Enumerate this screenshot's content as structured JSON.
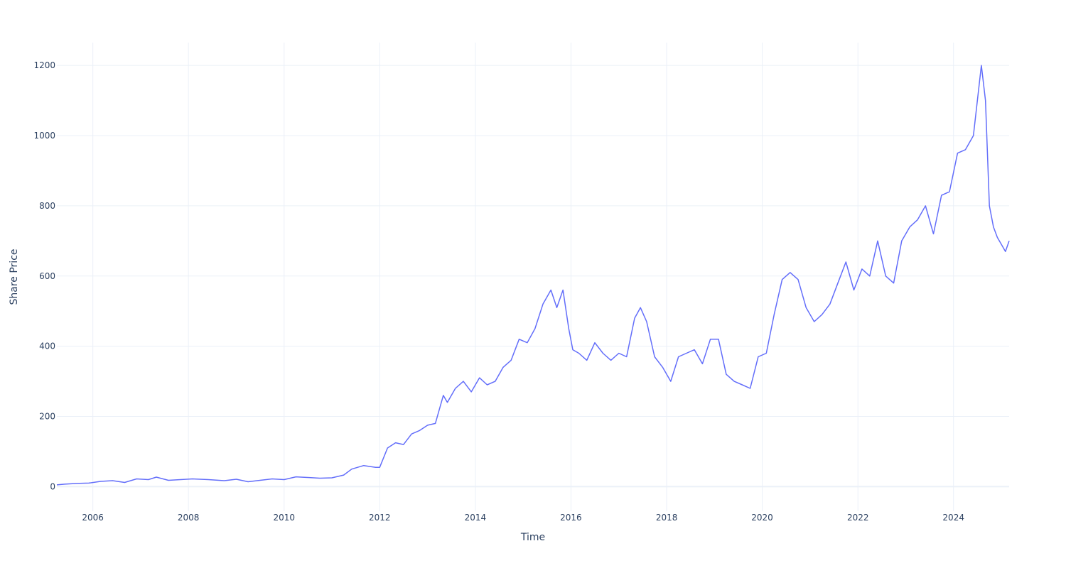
{
  "chart_data": {
    "type": "line",
    "title": "",
    "xlabel": "Time",
    "ylabel": "Share Price",
    "xlim": [
      "2005-04-01",
      "2025-03-01"
    ],
    "ylim": [
      -70,
      1265
    ],
    "x_ticks": [
      "2006",
      "2008",
      "2010",
      "2012",
      "2014",
      "2016",
      "2018",
      "2020",
      "2022",
      "2024"
    ],
    "y_ticks": [
      0,
      200,
      400,
      600,
      800,
      1000,
      1200
    ],
    "grid": true,
    "legend": "none",
    "series": [
      {
        "color": "#636efa",
        "x": [
          "2005-04-01",
          "2005-06-01",
          "2005-09-01",
          "2005-12-01",
          "2006-03-01",
          "2006-06-01",
          "2006-09-01",
          "2006-12-01",
          "2007-03-01",
          "2007-05-01",
          "2007-08-01",
          "2007-11-01",
          "2008-02-01",
          "2008-06-01",
          "2008-10-01",
          "2009-01-01",
          "2009-04-01",
          "2009-07-01",
          "2009-10-01",
          "2010-01-01",
          "2010-04-01",
          "2010-07-01",
          "2010-10-01",
          "2011-01-01",
          "2011-04-01",
          "2011-06-01",
          "2011-09-01",
          "2011-12-01",
          "2012-01-01",
          "2012-03-01",
          "2012-05-01",
          "2012-07-01",
          "2012-09-01",
          "2012-11-01",
          "2013-01-01",
          "2013-03-01",
          "2013-05-01",
          "2013-06-01",
          "2013-08-01",
          "2013-10-01",
          "2013-12-01",
          "2014-02-01",
          "2014-04-01",
          "2014-06-01",
          "2014-08-01",
          "2014-10-01",
          "2014-12-01",
          "2015-02-01",
          "2015-04-01",
          "2015-06-01",
          "2015-08-01",
          "2015-09-15",
          "2015-11-01",
          "2015-12-15",
          "2016-01-15",
          "2016-03-01",
          "2016-05-01",
          "2016-07-01",
          "2016-09-01",
          "2016-11-01",
          "2017-01-01",
          "2017-03-01",
          "2017-05-01",
          "2017-06-15",
          "2017-08-01",
          "2017-10-01",
          "2017-12-01",
          "2018-02-01",
          "2018-04-01",
          "2018-06-01",
          "2018-08-01",
          "2018-10-01",
          "2018-12-01",
          "2019-02-01",
          "2019-04-01",
          "2019-06-01",
          "2019-08-01",
          "2019-10-01",
          "2019-12-01",
          "2020-02-01",
          "2020-04-01",
          "2020-06-01",
          "2020-08-01",
          "2020-10-01",
          "2020-12-01",
          "2021-02-01",
          "2021-04-01",
          "2021-06-01",
          "2021-08-01",
          "2021-10-01",
          "2021-12-01",
          "2022-02-01",
          "2022-04-01",
          "2022-06-01",
          "2022-08-01",
          "2022-10-01",
          "2022-12-01",
          "2023-02-01",
          "2023-04-01",
          "2023-06-01",
          "2023-08-01",
          "2023-10-01",
          "2023-12-01",
          "2024-02-01",
          "2024-04-01",
          "2024-06-01",
          "2024-08-01",
          "2024-09-01",
          "2024-10-01",
          "2024-11-01",
          "2024-12-01",
          "2025-01-01",
          "2025-02-01",
          "2025-03-01"
        ],
        "y": [
          5,
          7,
          9,
          10,
          15,
          17,
          12,
          22,
          20,
          27,
          18,
          20,
          22,
          20,
          17,
          21,
          14,
          18,
          22,
          20,
          28,
          26,
          24,
          25,
          33,
          50,
          60,
          55,
          55,
          110,
          125,
          120,
          150,
          160,
          175,
          180,
          260,
          240,
          280,
          300,
          270,
          310,
          290,
          300,
          340,
          360,
          420,
          410,
          450,
          520,
          560,
          510,
          560,
          450,
          390,
          380,
          360,
          410,
          380,
          360,
          380,
          370,
          480,
          510,
          470,
          370,
          340,
          300,
          370,
          380,
          390,
          350,
          420,
          420,
          320,
          300,
          290,
          280,
          370,
          380,
          490,
          590,
          610,
          590,
          510,
          470,
          490,
          520,
          580,
          640,
          560,
          620,
          600,
          700,
          600,
          580,
          700,
          740,
          760,
          800,
          720,
          830,
          840,
          950,
          960,
          1000,
          1200,
          1100,
          800,
          740,
          710,
          690,
          670,
          700
        ]
      }
    ]
  }
}
